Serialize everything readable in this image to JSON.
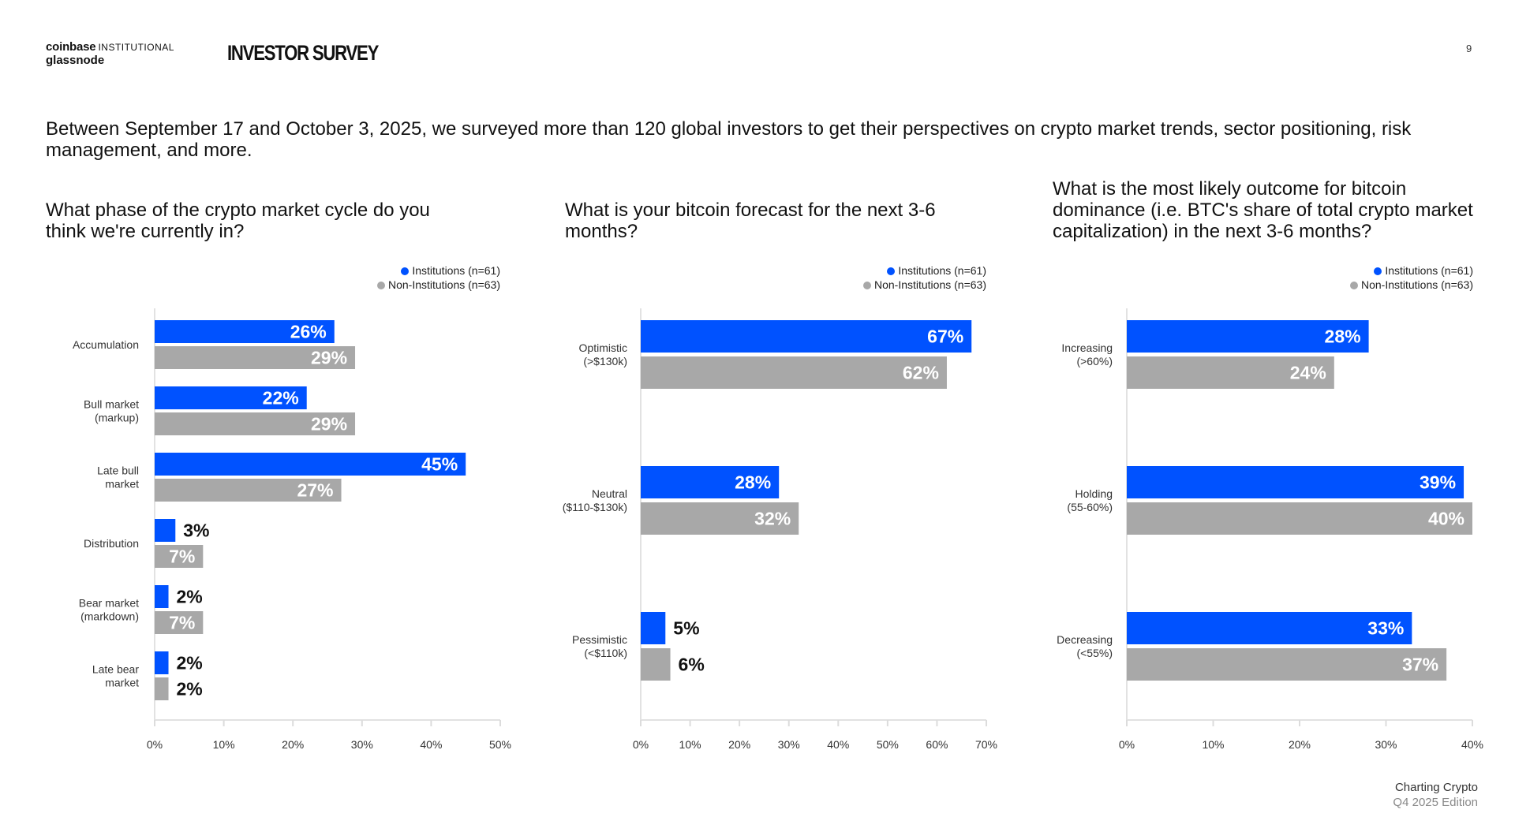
{
  "header": {
    "logo_coinbase": "coinbase",
    "logo_institutional": "INSTITUTIONAL",
    "logo_glassnode": "glassnode",
    "title": "INVESTOR SURVEY",
    "page_number": "9"
  },
  "intro": "Between September 17 and October 3, 2025, we surveyed more than 120 global investors to get their perspectives on crypto market trends, sector positioning, risk management, and more.",
  "footer": {
    "line1": "Charting Crypto",
    "line2": "Q4 2025 Edition"
  },
  "colors": {
    "institutions": "#0052ff",
    "non_institutions": "#a8a8a8"
  },
  "chart_data": [
    {
      "type": "bar",
      "orientation": "horizontal",
      "title": "What phase of the crypto market cycle do you think we're currently in?",
      "categories": [
        [
          "Accumulation"
        ],
        [
          "Bull market",
          "(markup)"
        ],
        [
          "Late bull",
          "market"
        ],
        [
          "Distribution"
        ],
        [
          "Bear market",
          "(markdown)"
        ],
        [
          "Late bear",
          "market"
        ]
      ],
      "series": [
        {
          "name": "Institutions (n=61)",
          "values": [
            26,
            22,
            45,
            3,
            2,
            2
          ]
        },
        {
          "name": "Non-Institutions (n=63)",
          "values": [
            29,
            29,
            27,
            7,
            7,
            2
          ]
        }
      ],
      "xlim": [
        0,
        50
      ],
      "xticks": [
        "0%",
        "10%",
        "20%",
        "30%",
        "40%",
        "50%"
      ],
      "legend": "top-right"
    },
    {
      "type": "bar",
      "orientation": "horizontal",
      "title": "What is your bitcoin forecast for the next 3-6 months?",
      "categories": [
        [
          "Optimistic",
          "(>$130k)"
        ],
        [
          "Neutral",
          "($110-$130k)"
        ],
        [
          "Pessimistic",
          "(<$110k)"
        ]
      ],
      "series": [
        {
          "name": "Institutions (n=61)",
          "values": [
            67,
            28,
            5
          ]
        },
        {
          "name": "Non-Institutions (n=63)",
          "values": [
            62,
            32,
            6
          ]
        }
      ],
      "xlim": [
        0,
        70
      ],
      "xticks": [
        "0%",
        "10%",
        "20%",
        "30%",
        "40%",
        "50%",
        "60%",
        "70%"
      ],
      "legend": "top-right"
    },
    {
      "type": "bar",
      "orientation": "horizontal",
      "title": "What is the most likely outcome for bitcoin dominance (i.e. BTC's share of total crypto market capitalization) in the next 3-6 months?",
      "categories": [
        [
          "Increasing",
          "(>60%)"
        ],
        [
          "Holding",
          "(55-60%)"
        ],
        [
          "Decreasing",
          "(<55%)"
        ]
      ],
      "series": [
        {
          "name": "Institutions (n=61)",
          "values": [
            28,
            39,
            33
          ]
        },
        {
          "name": "Non-Institutions (n=63)",
          "values": [
            24,
            40,
            37
          ]
        }
      ],
      "xlim": [
        0,
        40
      ],
      "xticks": [
        "0%",
        "10%",
        "20%",
        "30%",
        "40%"
      ],
      "legend": "top-right"
    }
  ]
}
